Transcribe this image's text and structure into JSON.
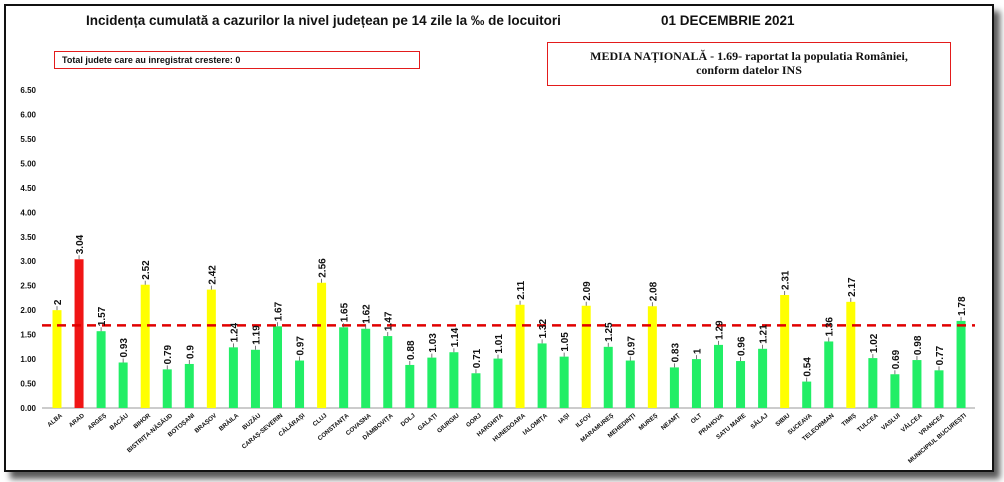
{
  "title": "Incidența cumulată a cazurilor la nivel județean pe 14 zile la ‰ de locuitori",
  "date": "01 DECEMBRIE 2021",
  "growth_note": "Total judete care au inregistrat crestere: 0",
  "national_note": {
    "line1": "MEDIA NAȚIONALĂ  - 1.69-  raportat la populatia României,",
    "line2": "conform datelor INS"
  },
  "colors": {
    "red": "#f01515",
    "yellow": "#ffff00",
    "green": "#22ee66",
    "reference_line": "#e00000"
  },
  "chart_data": {
    "type": "bar",
    "categories": [
      "ALBA",
      "ARAD",
      "ARGEȘ",
      "BACĂU",
      "BIHOR",
      "BISTRIȚA-NĂSĂUD",
      "BOTOȘANI",
      "BRAȘOV",
      "BRĂILA",
      "BUZĂU",
      "CARAȘ-SEVERIN",
      "CĂLĂRAȘI",
      "CLUJ",
      "CONSTANȚA",
      "COVASNA",
      "DÂMBOVIȚA",
      "DOLJ",
      "GALAȚI",
      "GIURGIU",
      "GORJ",
      "HARGHITA",
      "HUNEDOARA",
      "IALOMIȚA",
      "IAȘI",
      "ILFOV",
      "MARAMUREȘ",
      "MEHEDINȚI",
      "MUREȘ",
      "NEAMȚ",
      "OLT",
      "PRAHOVA",
      "SATU MARE",
      "SĂLAJ",
      "SIBIU",
      "SUCEAVA",
      "TELEORMAN",
      "TIMIȘ",
      "TULCEA",
      "VASLUI",
      "VÂLCEA",
      "VRANCEA",
      "MUNICIPIUL BUCUREȘTI"
    ],
    "values": [
      2,
      3.04,
      1.57,
      0.93,
      2.52,
      0.79,
      0.9,
      2.42,
      1.24,
      1.19,
      1.67,
      0.97,
      2.56,
      1.65,
      1.62,
      1.47,
      0.88,
      1.03,
      1.14,
      0.71,
      1.01,
      2.11,
      1.32,
      1.05,
      2.09,
      1.25,
      0.97,
      2.08,
      0.83,
      1,
      1.29,
      0.96,
      1.21,
      2.31,
      0.54,
      1.36,
      2.17,
      1.02,
      0.69,
      0.98,
      0.77,
      1.78
    ],
    "value_labels": [
      "2",
      "3.04",
      "1.57",
      "0.93",
      "2.52",
      "0.79",
      "0.9",
      "2.42",
      "1.24",
      "1.19",
      "1.67",
      "0.97",
      "2.56",
      "1.65",
      "1.62",
      "1.47",
      "0.88",
      "1.03",
      "1.14",
      "0.71",
      "1.01",
      "2.11",
      "1.32",
      "1.05",
      "2.09",
      "1.25",
      "0.97",
      "2.08",
      "0.83",
      "1",
      "1.29",
      "0.96",
      "1.21",
      "2.31",
      "0.54",
      "1.36",
      "2.17",
      "1.02",
      "0.69",
      "0.98",
      "0.77",
      "1.78"
    ],
    "bar_colors": [
      "yellow",
      "red",
      "green",
      "green",
      "yellow",
      "green",
      "green",
      "yellow",
      "green",
      "green",
      "green",
      "green",
      "yellow",
      "green",
      "green",
      "green",
      "green",
      "green",
      "green",
      "green",
      "green",
      "yellow",
      "green",
      "green",
      "yellow",
      "green",
      "green",
      "yellow",
      "green",
      "green",
      "green",
      "green",
      "green",
      "yellow",
      "green",
      "green",
      "yellow",
      "green",
      "green",
      "green",
      "green",
      "green"
    ],
    "y_ticks": [
      "0.00",
      "0.50",
      "1.00",
      "1.50",
      "2.00",
      "2.50",
      "3.00",
      "3.50",
      "4.00",
      "4.50",
      "5.00",
      "5.50",
      "6.00",
      "6.50"
    ],
    "ylim": [
      0,
      6.5
    ],
    "reference_line": 1.69,
    "grid": false,
    "legend": "none"
  }
}
